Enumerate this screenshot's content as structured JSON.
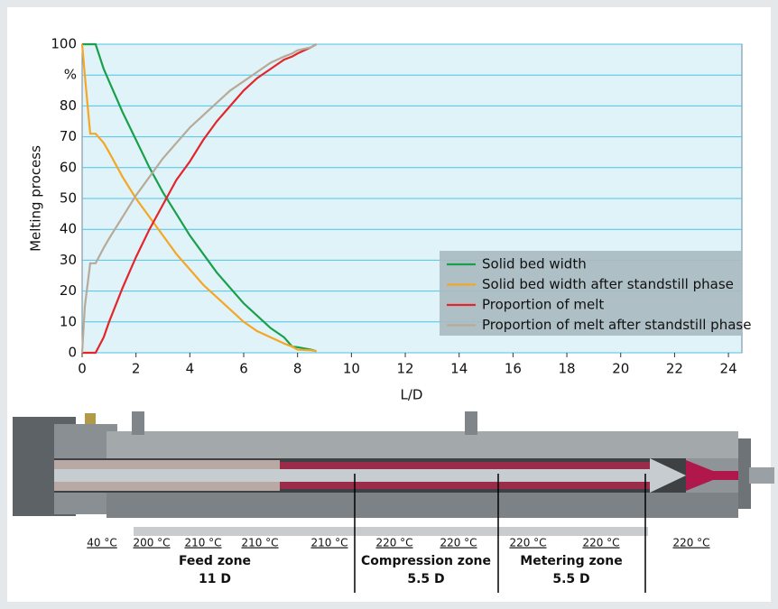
{
  "chart_data": {
    "type": "line",
    "x_label": "L/D",
    "y_label": "Melting process",
    "x": [
      0,
      0.1,
      0.3,
      0.5,
      0.8,
      1,
      1.5,
      2,
      2.5,
      3,
      3.5,
      4,
      4.5,
      5,
      5.5,
      6,
      6.5,
      7,
      7.5,
      7.8,
      8,
      8.5,
      8.7
    ],
    "series": [
      {
        "name": "Solid bed width",
        "color": "#1aa04a",
        "values": [
          100,
          100,
          100,
          100,
          92,
          88,
          78,
          69,
          60,
          52,
          45,
          38,
          32,
          26,
          21,
          16,
          12,
          8,
          5,
          2,
          1.8,
          1,
          0.5
        ]
      },
      {
        "name": "Solid bed width after standstill phase",
        "color": "#f5a623",
        "values": [
          100,
          90,
          71,
          71,
          68,
          65,
          57,
          50,
          44,
          38,
          32,
          27,
          22,
          18,
          14,
          10,
          7,
          5,
          3,
          2,
          1,
          0.8,
          0.5
        ]
      },
      {
        "name": "Proportion of melt",
        "color": "#e3262b",
        "values": [
          0,
          0,
          0,
          0,
          5,
          10,
          21,
          31,
          40,
          48,
          56,
          62,
          69,
          75,
          80,
          85,
          89,
          92,
          95,
          96,
          97,
          99,
          100
        ]
      },
      {
        "name": "Proportion of melt after standstill phase",
        "color": "#b8aa98",
        "values": [
          0,
          15,
          29,
          29,
          34,
          37,
          44,
          51,
          57,
          63,
          68,
          73,
          77,
          81,
          85,
          88,
          91,
          94,
          96,
          97,
          98,
          99,
          100
        ]
      }
    ],
    "xlim": [
      0,
      24.5
    ],
    "ylim": [
      0,
      100
    ],
    "xticks": [
      0,
      2,
      4,
      6,
      8,
      10,
      12,
      14,
      16,
      18,
      20,
      22,
      24
    ],
    "yticks": [
      0,
      10,
      20,
      30,
      40,
      50,
      60,
      70,
      80,
      {
        "value": 90,
        "label": "%"
      },
      100
    ],
    "grid": true,
    "legend": "lower-right"
  },
  "illustration": {
    "temperatures": [
      "40 °C",
      "200 °C",
      "210 °C",
      "210 °C",
      "210 °C",
      "220 °C",
      "220 °C",
      "220 °C",
      "220 °C",
      "220 °C"
    ],
    "zones": [
      {
        "name": "Feed zone",
        "length": "11 D"
      },
      {
        "name": "Compression zone",
        "length": "5.5 D"
      },
      {
        "name": "Metering zone",
        "length": "5.5 D"
      }
    ]
  }
}
